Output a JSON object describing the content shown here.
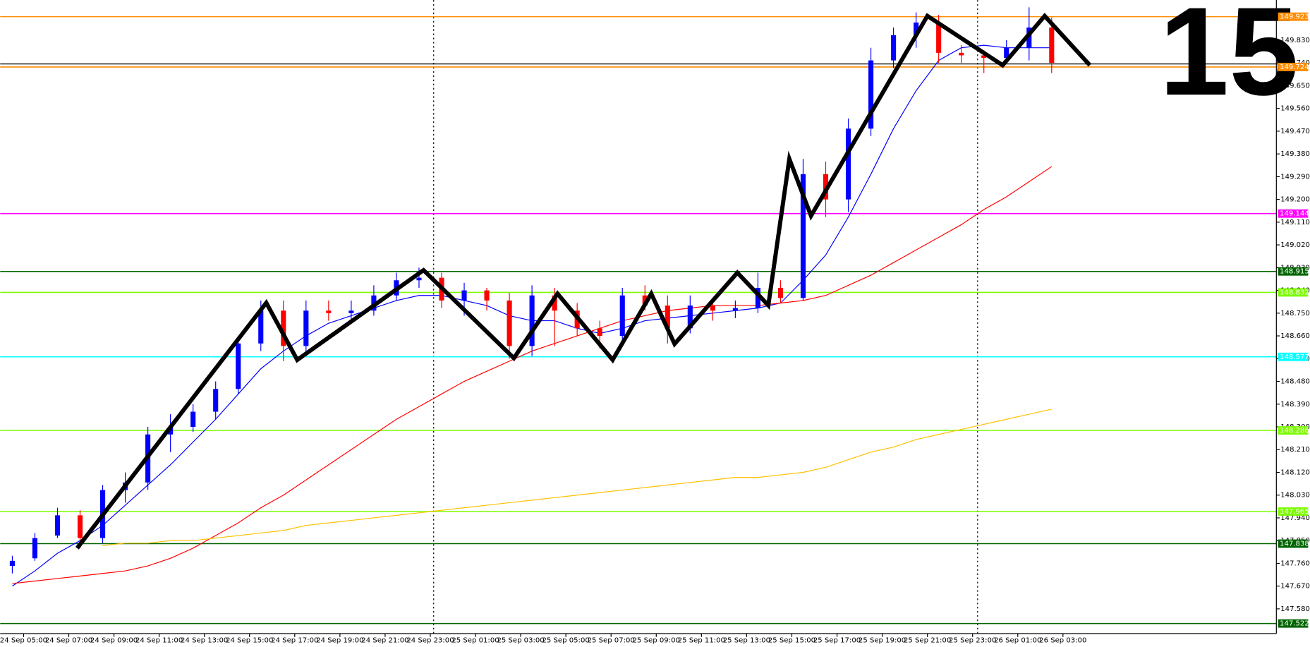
{
  "chart_data": {
    "type": "candlestick",
    "timeframe_label": "15",
    "x_labels": [
      "24 Sep 05:00",
      "24 Sep 07:00",
      "24 Sep 09:00",
      "24 Sep 11:00",
      "24 Sep 13:00",
      "24 Sep 15:00",
      "24 Sep 17:00",
      "24 Sep 19:00",
      "24 Sep 21:00",
      "24 Sep 23:00",
      "25 Sep 01:00",
      "25 Sep 03:00",
      "25 Sep 05:00",
      "25 Sep 07:00",
      "25 Sep 09:00",
      "25 Sep 11:00",
      "25 Sep 13:00",
      "25 Sep 15:00",
      "25 Sep 17:00",
      "25 Sep 19:00",
      "25 Sep 21:00",
      "25 Sep 23:00",
      "26 Sep 01:00",
      "26 Sep 03:00"
    ],
    "up_color": "#0000ff",
    "down_color": "#ff0000",
    "candles": [
      {
        "o": 147.75,
        "h": 147.79,
        "l": 147.72,
        "c": 147.77
      },
      {
        "o": 147.78,
        "h": 147.88,
        "l": 147.77,
        "c": 147.86
      },
      {
        "o": 147.87,
        "h": 147.98,
        "l": 147.86,
        "c": 147.95
      },
      {
        "o": 147.95,
        "h": 147.97,
        "l": 147.82,
        "c": 147.86
      },
      {
        "o": 147.86,
        "h": 148.07,
        "l": 147.84,
        "c": 148.05
      },
      {
        "o": 148.05,
        "h": 148.12,
        "l": 148.0,
        "c": 148.08
      },
      {
        "o": 148.08,
        "h": 148.3,
        "l": 148.05,
        "c": 148.27
      },
      {
        "o": 148.27,
        "h": 148.35,
        "l": 148.2,
        "c": 148.3
      },
      {
        "o": 148.3,
        "h": 148.39,
        "l": 148.28,
        "c": 148.36
      },
      {
        "o": 148.36,
        "h": 148.48,
        "l": 148.33,
        "c": 148.45
      },
      {
        "o": 148.45,
        "h": 148.66,
        "l": 148.43,
        "c": 148.63
      },
      {
        "o": 148.63,
        "h": 148.8,
        "l": 148.6,
        "c": 148.76
      },
      {
        "o": 148.76,
        "h": 148.8,
        "l": 148.56,
        "c": 148.62
      },
      {
        "o": 148.62,
        "h": 148.8,
        "l": 148.58,
        "c": 148.76
      },
      {
        "o": 148.76,
        "h": 148.8,
        "l": 148.72,
        "c": 148.75
      },
      {
        "o": 148.75,
        "h": 148.8,
        "l": 148.72,
        "c": 148.76
      },
      {
        "o": 148.76,
        "h": 148.86,
        "l": 148.74,
        "c": 148.82
      },
      {
        "o": 148.82,
        "h": 148.91,
        "l": 148.8,
        "c": 148.88
      },
      {
        "o": 148.88,
        "h": 148.93,
        "l": 148.85,
        "c": 148.89
      },
      {
        "o": 148.89,
        "h": 148.91,
        "l": 148.77,
        "c": 148.8
      },
      {
        "o": 148.8,
        "h": 148.87,
        "l": 148.74,
        "c": 148.84
      },
      {
        "o": 148.84,
        "h": 148.85,
        "l": 148.76,
        "c": 148.8
      },
      {
        "o": 148.8,
        "h": 148.83,
        "l": 148.57,
        "c": 148.62
      },
      {
        "o": 148.62,
        "h": 148.86,
        "l": 148.58,
        "c": 148.82
      },
      {
        "o": 148.82,
        "h": 148.85,
        "l": 148.62,
        "c": 148.76
      },
      {
        "o": 148.76,
        "h": 148.79,
        "l": 148.66,
        "c": 148.69
      },
      {
        "o": 148.69,
        "h": 148.72,
        "l": 148.61,
        "c": 148.66
      },
      {
        "o": 148.66,
        "h": 148.85,
        "l": 148.63,
        "c": 148.82
      },
      {
        "o": 148.82,
        "h": 148.86,
        "l": 148.76,
        "c": 148.78
      },
      {
        "o": 148.78,
        "h": 148.82,
        "l": 148.63,
        "c": 148.69
      },
      {
        "o": 148.69,
        "h": 148.82,
        "l": 148.67,
        "c": 148.78
      },
      {
        "o": 148.78,
        "h": 148.8,
        "l": 148.72,
        "c": 148.76
      },
      {
        "o": 148.76,
        "h": 148.8,
        "l": 148.73,
        "c": 148.77
      },
      {
        "o": 148.77,
        "h": 148.91,
        "l": 148.75,
        "c": 148.85
      },
      {
        "o": 148.85,
        "h": 148.88,
        "l": 148.79,
        "c": 148.81
      },
      {
        "o": 148.81,
        "h": 149.36,
        "l": 148.8,
        "c": 149.3
      },
      {
        "o": 149.3,
        "h": 149.35,
        "l": 149.13,
        "c": 149.2
      },
      {
        "o": 149.2,
        "h": 149.52,
        "l": 149.15,
        "c": 149.48
      },
      {
        "o": 149.48,
        "h": 149.8,
        "l": 149.45,
        "c": 149.75
      },
      {
        "o": 149.75,
        "h": 149.88,
        "l": 149.72,
        "c": 149.85
      },
      {
        "o": 149.85,
        "h": 149.94,
        "l": 149.8,
        "c": 149.9
      },
      {
        "o": 149.9,
        "h": 149.93,
        "l": 149.74,
        "c": 149.78
      },
      {
        "o": 149.78,
        "h": 149.81,
        "l": 149.74,
        "c": 149.77
      },
      {
        "o": 149.77,
        "h": 149.79,
        "l": 149.7,
        "c": 149.76
      },
      {
        "o": 149.76,
        "h": 149.83,
        "l": 149.74,
        "c": 149.8
      },
      {
        "o": 149.8,
        "h": 149.96,
        "l": 149.75,
        "c": 149.88
      },
      {
        "o": 149.88,
        "h": 149.92,
        "l": 149.7,
        "c": 149.74
      }
    ],
    "moving_averages": [
      {
        "color": "#0000ff",
        "values": [
          147.67,
          147.73,
          147.8,
          147.85,
          147.91,
          147.99,
          148.07,
          148.15,
          148.24,
          148.33,
          148.43,
          148.53,
          148.6,
          148.66,
          148.71,
          148.74,
          148.77,
          148.8,
          148.82,
          148.82,
          148.8,
          148.78,
          148.74,
          148.72,
          148.72,
          148.69,
          148.67,
          148.69,
          148.72,
          148.73,
          148.74,
          148.75,
          148.76,
          148.77,
          148.79,
          148.88,
          148.98,
          149.13,
          149.3,
          149.48,
          149.63,
          149.75,
          149.8,
          149.81,
          149.8,
          149.8,
          149.8
        ]
      },
      {
        "color": "#ff0000",
        "values": [
          147.68,
          147.69,
          147.7,
          147.71,
          147.72,
          147.73,
          147.75,
          147.78,
          147.82,
          147.87,
          147.92,
          147.98,
          148.03,
          148.09,
          148.15,
          148.21,
          148.27,
          148.33,
          148.38,
          148.43,
          148.48,
          148.52,
          148.56,
          148.6,
          148.63,
          148.66,
          148.69,
          148.72,
          148.74,
          148.76,
          148.77,
          148.78,
          148.78,
          148.78,
          148.79,
          148.8,
          148.82,
          148.86,
          148.9,
          148.95,
          149.0,
          149.05,
          149.1,
          149.16,
          149.21,
          149.27,
          149.33
        ]
      },
      {
        "color": "#ffc000",
        "values": [
          null,
          null,
          null,
          null,
          147.83,
          147.84,
          147.84,
          147.85,
          147.85,
          147.86,
          147.87,
          147.88,
          147.89,
          147.91,
          147.92,
          147.93,
          147.94,
          147.95,
          147.96,
          147.97,
          147.98,
          147.99,
          148.0,
          148.01,
          148.02,
          148.03,
          148.04,
          148.05,
          148.06,
          148.07,
          148.08,
          148.09,
          148.1,
          148.1,
          148.11,
          148.12,
          148.14,
          148.17,
          148.2,
          148.22,
          148.25,
          148.27,
          148.29,
          148.31,
          148.33,
          148.35,
          148.37
        ]
      }
    ],
    "zigzag": {
      "color": "#000000",
      "x": [
        2.87,
        11.24,
        12.61,
        18.2,
        22.2,
        24.13,
        26.57,
        28.28,
        29.31,
        32.09,
        33.46,
        34.39,
        35.35,
        40.5,
        43.83,
        45.69,
        47.69
      ],
      "y": [
        147.82,
        148.791,
        148.565,
        148.92,
        148.572,
        148.827,
        148.565,
        148.827,
        148.628,
        148.91,
        148.781,
        149.36,
        149.135,
        149.926,
        149.731,
        149.926,
        149.731
      ]
    },
    "price_line": {
      "value": 149.736,
      "color": "#000000"
    },
    "levels": [
      {
        "value": 149.923,
        "color": "#ff8c00"
      },
      {
        "value": 149.724,
        "color": "#ff8c00"
      },
      {
        "value": 149.144,
        "color": "#ff00ff"
      },
      {
        "value": 148.915,
        "color": "#006400"
      },
      {
        "value": 148.832,
        "color": "#7cfc00"
      },
      {
        "value": 148.577,
        "color": "#00ffff"
      },
      {
        "value": 148.286,
        "color": "#7cfc00"
      },
      {
        "value": 147.965,
        "color": "#7cfc00"
      },
      {
        "value": 147.838,
        "color": "#006400"
      },
      {
        "value": 147.522,
        "color": "#006400"
      }
    ],
    "ylim": [
      147.482,
      149.989
    ],
    "yticks": [
      {
        "value": 149.83,
        "label": "149.830"
      },
      {
        "value": 149.74,
        "label": "149.740"
      },
      {
        "value": 149.65,
        "label": "149.650"
      },
      {
        "value": 149.56,
        "label": "149.560"
      },
      {
        "value": 149.47,
        "label": "149.470"
      },
      {
        "value": 149.38,
        "label": "149.380"
      },
      {
        "value": 149.29,
        "label": "149.290"
      },
      {
        "value": 149.2,
        "label": "149.200"
      },
      {
        "value": 149.11,
        "label": "149.110"
      },
      {
        "value": 149.02,
        "label": "149.020"
      },
      {
        "value": 148.93,
        "label": "148.930"
      },
      {
        "value": 148.84,
        "label": "148.840"
      },
      {
        "value": 148.75,
        "label": "148.750"
      },
      {
        "value": 148.66,
        "label": "148.660"
      },
      {
        "value": 148.57,
        "label": "148.570"
      },
      {
        "value": 148.48,
        "label": "148.480"
      },
      {
        "value": 148.39,
        "label": "148.390"
      },
      {
        "value": 148.3,
        "label": "148.300"
      },
      {
        "value": 148.21,
        "label": "148.210"
      },
      {
        "value": 148.12,
        "label": "148.120"
      },
      {
        "value": 148.03,
        "label": "148.030"
      },
      {
        "value": 147.94,
        "label": "147.940"
      },
      {
        "value": 147.85,
        "label": "147.850"
      },
      {
        "value": 147.76,
        "label": "147.760"
      },
      {
        "value": 147.67,
        "label": "147.670"
      },
      {
        "value": 147.58,
        "label": "147.580"
      }
    ]
  }
}
